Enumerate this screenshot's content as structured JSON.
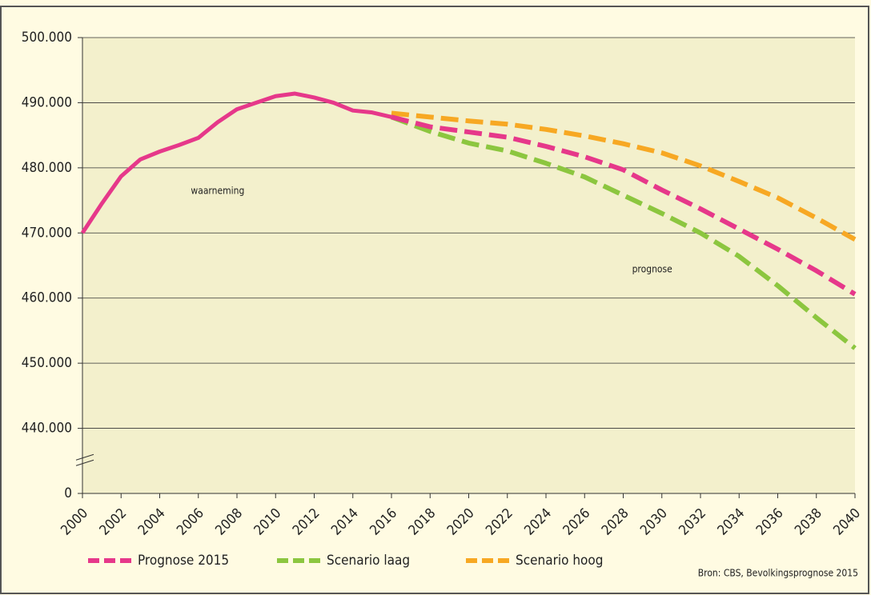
{
  "chart_data": {
    "type": "line",
    "xlim": [
      2000,
      2040
    ],
    "xticks": [
      2000,
      2002,
      2004,
      2006,
      2008,
      2010,
      2012,
      2014,
      2016,
      2018,
      2020,
      2022,
      2024,
      2026,
      2028,
      2030,
      2032,
      2034,
      2036,
      2038,
      2040
    ],
    "ylim": [
      0,
      500000
    ],
    "y_break": [
      0,
      440000
    ],
    "yticks": [
      {
        "value": 0,
        "label": "0"
      },
      {
        "value": 440000,
        "label": "440.000"
      },
      {
        "value": 450000,
        "label": "450.000"
      },
      {
        "value": 460000,
        "label": "460.000"
      },
      {
        "value": 470000,
        "label": "470.000"
      },
      {
        "value": 480000,
        "label": "480.000"
      },
      {
        "value": 490000,
        "label": "490.000"
      },
      {
        "value": 500000,
        "label": "500.000"
      }
    ],
    "grid": true,
    "series": [
      {
        "color": "#e6388a",
        "dashed": false,
        "x": [
          2000,
          2001,
          2002,
          2003,
          2004,
          2005,
          2006,
          2007,
          2008,
          2009,
          2010,
          2011,
          2012,
          2013,
          2014,
          2015,
          2016
        ],
        "values": [
          470000,
          474500,
          478700,
          481300,
          482500,
          483500,
          484600,
          487000,
          489000,
          490000,
          491000,
          491400,
          490800,
          490000,
          488800,
          488500,
          487800
        ]
      },
      {
        "name": "Prognose 2015",
        "color": "#e6388a",
        "dashed": true,
        "x": [
          2016,
          2018,
          2020,
          2022,
          2024,
          2026,
          2028,
          2030,
          2032,
          2034,
          2036,
          2038,
          2040
        ],
        "values": [
          487800,
          486300,
          485500,
          484700,
          483300,
          481700,
          479700,
          476600,
          473700,
          470600,
          467500,
          464200,
          460600
        ]
      },
      {
        "name": "Scenario laag",
        "color": "#8cc63f",
        "dashed": true,
        "x": [
          2016,
          2018,
          2020,
          2022,
          2024,
          2026,
          2028,
          2030,
          2032,
          2034,
          2036,
          2038,
          2040
        ],
        "values": [
          487800,
          485600,
          483800,
          482600,
          480700,
          478600,
          475800,
          473000,
          470000,
          466400,
          461900,
          457000,
          452300
        ]
      },
      {
        "name": "Scenario hoog",
        "color": "#f7a823",
        "dashed": true,
        "x": [
          2016,
          2018,
          2020,
          2022,
          2024,
          2026,
          2028,
          2030,
          2032,
          2034,
          2036,
          2038,
          2040
        ],
        "values": [
          488400,
          487800,
          487200,
          486700,
          485900,
          484900,
          483700,
          482300,
          480300,
          477900,
          475400,
          472300,
          469000
        ]
      }
    ],
    "annotations": [
      {
        "text": "waarneming",
        "x": 2007,
        "y": 476400
      },
      {
        "text": "prognose",
        "x": 2029.5,
        "y": 464400
      }
    ],
    "source": "Bron: CBS, Bevolkingsprognose 2015"
  }
}
